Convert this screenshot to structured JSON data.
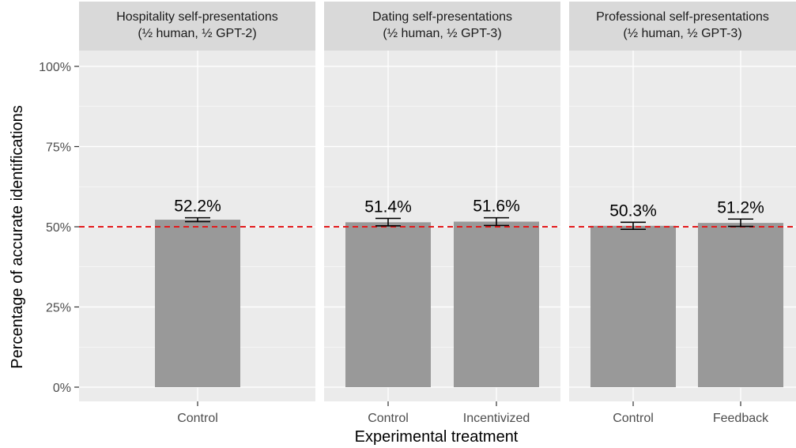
{
  "colors": {
    "panel_background": "#ebebeb",
    "strip_background": "#d9d9d9",
    "gridline": "#ffffff",
    "bar_fill": "#999999",
    "reference_line": "#e41a1c",
    "error_bar": "#000000"
  },
  "chart_data": {
    "type": "bar",
    "xlabel": "Experimental treatment",
    "ylabel": "Percentage of accurate identifications",
    "ylim": [
      0,
      100
    ],
    "y_ticks": [
      "0%",
      "25%",
      "50%",
      "75%",
      "100%"
    ],
    "y_tick_values": [
      0,
      25,
      50,
      75,
      100
    ],
    "grid": true,
    "reference_line": {
      "value": 50,
      "style": "dashed"
    },
    "panels": [
      {
        "title_line1": "Hospitality self-presentations",
        "title_line2": "(½ human, ½ GPT-2)",
        "categories": [
          "Control"
        ],
        "values": [
          52.2
        ],
        "labels": [
          "52.2%"
        ],
        "error_low": [
          51.6
        ],
        "error_high": [
          52.8
        ]
      },
      {
        "title_line1": "Dating self-presentations",
        "title_line2": "(½ human, ½ GPT-3)",
        "categories": [
          "Control",
          "Incentivized"
        ],
        "values": [
          51.4,
          51.6
        ],
        "labels": [
          "51.4%",
          "51.6%"
        ],
        "error_low": [
          50.3,
          50.4
        ],
        "error_high": [
          52.6,
          52.8
        ]
      },
      {
        "title_line1": "Professional self-presentations",
        "title_line2": "(½ human, ½ GPT-3)",
        "categories": [
          "Control",
          "Feedback"
        ],
        "values": [
          50.3,
          51.2
        ],
        "labels": [
          "50.3%",
          "51.2%"
        ],
        "error_low": [
          49.2,
          50.1
        ],
        "error_high": [
          51.4,
          52.4
        ]
      }
    ]
  }
}
